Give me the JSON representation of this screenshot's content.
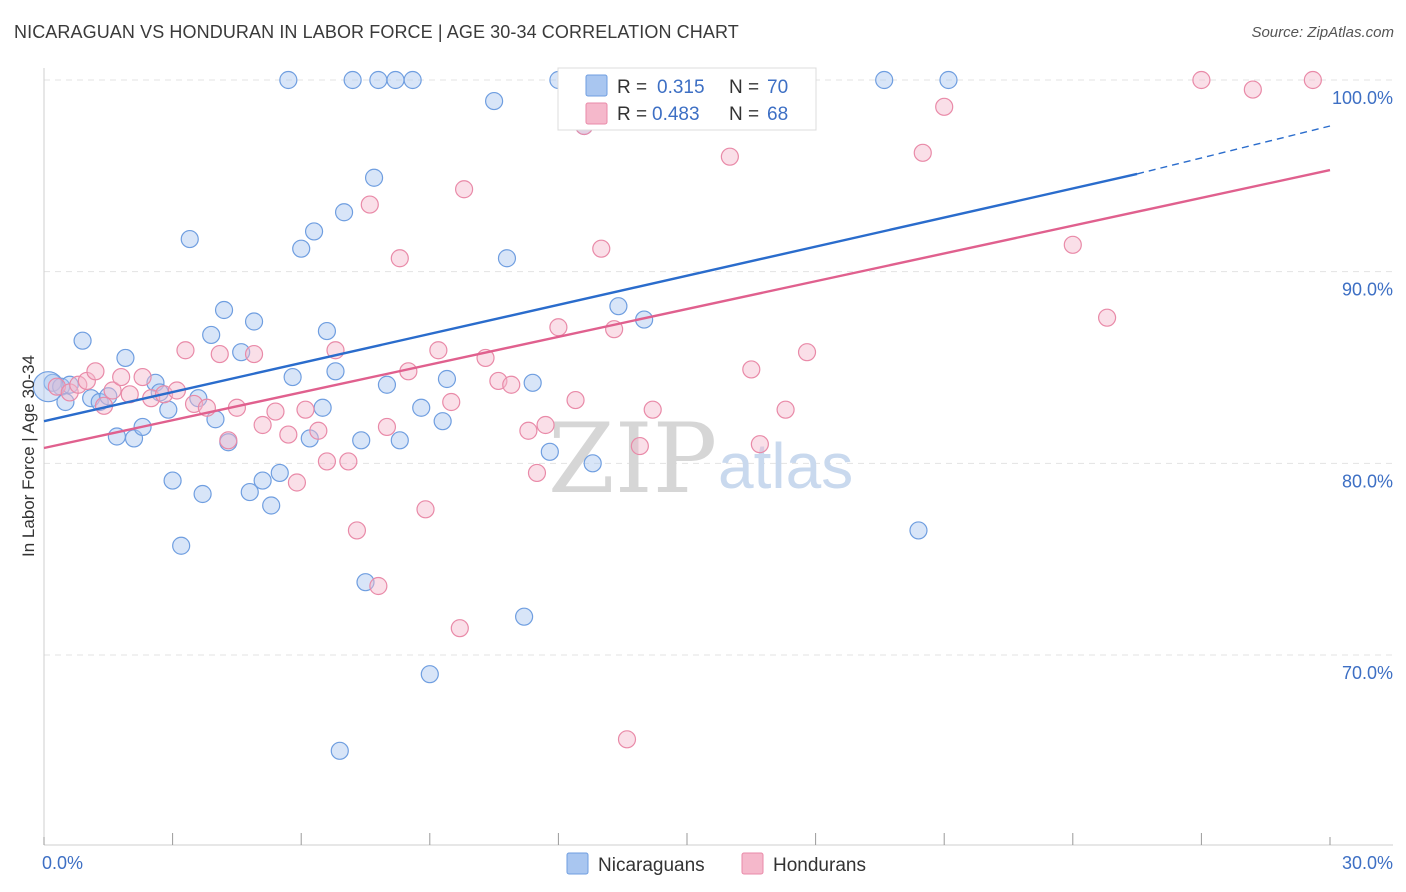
{
  "header": {
    "title": "NICARAGUAN VS HONDURAN IN LABOR FORCE | AGE 30-34 CORRELATION CHART",
    "source": "Source: ZipAtlas.com"
  },
  "watermark": {
    "zip": "ZIP",
    "atlas": "atlas"
  },
  "legend": {
    "r_label": "R =",
    "n_label": "N =",
    "items": [
      {
        "r": "0.315",
        "n": "70",
        "color": "#a9c6f0"
      },
      {
        "r": "0.483",
        "n": "68",
        "color": "#f5b8cb"
      }
    ]
  },
  "bottom_legend": [
    {
      "label": "Nicaraguans",
      "color": "#a9c6f0"
    },
    {
      "label": "Hondurans",
      "color": "#f5b8cb"
    }
  ],
  "colors": {
    "blue_fill": "#a9c6f0",
    "blue_stroke": "#6f9ee0",
    "blue_line": "#2a6ccc",
    "pink_fill": "#f5b8cb",
    "pink_stroke": "#e98aa8",
    "pink_line": "#e0608e",
    "grid": "#e3e3e3",
    "axis_text": "#3d6fc4"
  },
  "chart_data": {
    "type": "scatter",
    "title": "NICARAGUAN VS HONDURAN IN LABOR FORCE | AGE 30-34 CORRELATION CHART",
    "xlabel": "",
    "ylabel": "In Labor Force | Age 30-34",
    "xlim": [
      0,
      30
    ],
    "ylim": [
      60.5,
      101.5
    ],
    "x_tick_labels": [
      "0.0%",
      "30.0%"
    ],
    "y_ticks": [
      70,
      80,
      90,
      100
    ],
    "y_tick_labels": [
      "70.0%",
      "80.0%",
      "90.0%",
      "100.0%"
    ],
    "grid": true,
    "legend_position": "top-center",
    "series": [
      {
        "name": "Nicaraguans",
        "r": 0.315,
        "n": 70,
        "trend": {
          "x0": 0,
          "y0": 82.2,
          "x1": 25.5,
          "y1": 95.1,
          "dash_to_x": 30,
          "dash_to_y": 97.6
        },
        "points": [
          [
            0.2,
            84.2
          ],
          [
            0.4,
            84.0
          ],
          [
            0.5,
            83.2
          ],
          [
            0.6,
            84.1
          ],
          [
            0.9,
            86.4
          ],
          [
            1.1,
            83.4
          ],
          [
            1.3,
            83.2
          ],
          [
            1.5,
            83.5
          ],
          [
            1.9,
            85.5
          ],
          [
            1.7,
            81.4
          ],
          [
            2.1,
            81.3
          ],
          [
            2.3,
            81.9
          ],
          [
            2.6,
            84.2
          ],
          [
            2.7,
            83.7
          ],
          [
            2.9,
            82.8
          ],
          [
            3.0,
            79.1
          ],
          [
            3.2,
            75.7
          ],
          [
            3.4,
            91.7
          ],
          [
            3.6,
            83.4
          ],
          [
            3.7,
            78.4
          ],
          [
            3.9,
            86.7
          ],
          [
            4.0,
            82.3
          ],
          [
            4.2,
            88.0
          ],
          [
            4.3,
            81.1
          ],
          [
            4.6,
            85.8
          ],
          [
            4.8,
            78.5
          ],
          [
            4.9,
            87.4
          ],
          [
            5.1,
            79.1
          ],
          [
            5.3,
            77.8
          ],
          [
            5.5,
            79.5
          ],
          [
            5.7,
            100.0
          ],
          [
            5.8,
            84.5
          ],
          [
            6.0,
            91.2
          ],
          [
            6.2,
            81.3
          ],
          [
            6.3,
            92.1
          ],
          [
            6.5,
            82.9
          ],
          [
            6.6,
            86.9
          ],
          [
            6.8,
            84.8
          ],
          [
            6.9,
            65.0
          ],
          [
            7.0,
            93.1
          ],
          [
            7.2,
            100.0
          ],
          [
            7.4,
            81.2
          ],
          [
            7.5,
            73.8
          ],
          [
            7.7,
            94.9
          ],
          [
            7.8,
            100.0
          ],
          [
            8.0,
            84.1
          ],
          [
            8.2,
            100.0
          ],
          [
            8.3,
            81.2
          ],
          [
            8.6,
            100.0
          ],
          [
            8.8,
            82.9
          ],
          [
            9.0,
            69.0
          ],
          [
            9.3,
            82.2
          ],
          [
            9.4,
            84.4
          ],
          [
            10.5,
            98.9
          ],
          [
            10.8,
            90.7
          ],
          [
            11.2,
            72.0
          ],
          [
            11.4,
            84.2
          ],
          [
            11.8,
            80.6
          ],
          [
            12.0,
            100.0
          ],
          [
            12.6,
            97.6
          ],
          [
            12.8,
            80.0
          ],
          [
            13.4,
            88.2
          ],
          [
            13.5,
            100.0
          ],
          [
            14.0,
            87.5
          ],
          [
            15.0,
            100.0
          ],
          [
            16.1,
            100.0
          ],
          [
            17.3,
            100.0
          ],
          [
            19.6,
            100.0
          ],
          [
            20.4,
            76.5
          ],
          [
            21.1,
            100.0
          ]
        ]
      },
      {
        "name": "Hondurans",
        "r": 0.483,
        "n": 68,
        "trend": {
          "x0": 0,
          "y0": 80.8,
          "x1": 30,
          "y1": 95.3
        },
        "points": [
          [
            0.3,
            84.0
          ],
          [
            0.6,
            83.7
          ],
          [
            0.8,
            84.1
          ],
          [
            1.0,
            84.3
          ],
          [
            1.2,
            84.8
          ],
          [
            1.4,
            83.0
          ],
          [
            1.6,
            83.8
          ],
          [
            1.8,
            84.5
          ],
          [
            2.0,
            83.6
          ],
          [
            2.3,
            84.5
          ],
          [
            2.5,
            83.4
          ],
          [
            2.8,
            83.6
          ],
          [
            3.1,
            83.8
          ],
          [
            3.3,
            85.9
          ],
          [
            3.5,
            83.1
          ],
          [
            3.8,
            82.9
          ],
          [
            4.1,
            85.7
          ],
          [
            4.3,
            81.2
          ],
          [
            4.5,
            82.9
          ],
          [
            4.9,
            85.7
          ],
          [
            5.1,
            82.0
          ],
          [
            5.4,
            82.7
          ],
          [
            5.7,
            81.5
          ],
          [
            5.9,
            79.0
          ],
          [
            6.1,
            82.8
          ],
          [
            6.4,
            81.7
          ],
          [
            6.6,
            80.1
          ],
          [
            6.8,
            85.9
          ],
          [
            7.1,
            80.1
          ],
          [
            7.3,
            76.5
          ],
          [
            7.6,
            93.5
          ],
          [
            7.8,
            73.6
          ],
          [
            8.0,
            81.9
          ],
          [
            8.3,
            90.7
          ],
          [
            8.5,
            84.8
          ],
          [
            8.9,
            77.6
          ],
          [
            9.2,
            85.9
          ],
          [
            9.5,
            83.2
          ],
          [
            9.7,
            71.4
          ],
          [
            9.8,
            94.3
          ],
          [
            10.3,
            85.5
          ],
          [
            10.6,
            84.3
          ],
          [
            10.9,
            84.1
          ],
          [
            11.3,
            81.7
          ],
          [
            11.5,
            79.5
          ],
          [
            11.7,
            82.0
          ],
          [
            12.0,
            87.1
          ],
          [
            12.4,
            83.3
          ],
          [
            12.6,
            97.6
          ],
          [
            13.0,
            91.2
          ],
          [
            13.3,
            87.0
          ],
          [
            13.6,
            65.6
          ],
          [
            13.9,
            80.9
          ],
          [
            14.2,
            82.8
          ],
          [
            15.0,
            100.0
          ],
          [
            15.8,
            99.2
          ],
          [
            16.0,
            96.0
          ],
          [
            16.5,
            84.9
          ],
          [
            16.7,
            81.0
          ],
          [
            17.3,
            82.8
          ],
          [
            17.8,
            85.8
          ],
          [
            20.5,
            96.2
          ],
          [
            21.0,
            98.6
          ],
          [
            24.0,
            91.4
          ],
          [
            24.8,
            87.6
          ],
          [
            27.0,
            100.0
          ],
          [
            28.2,
            99.5
          ],
          [
            29.6,
            100.0
          ]
        ]
      }
    ]
  }
}
